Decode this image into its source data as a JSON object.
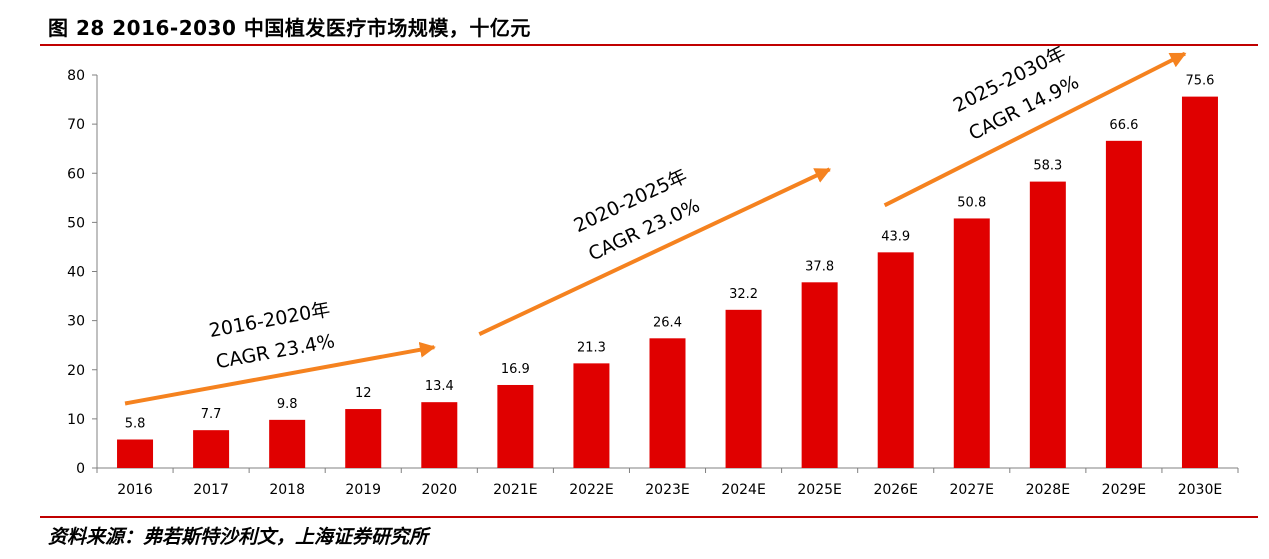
{
  "page": {
    "title": "图 28 2016-2030 中国植发医疗市场规模，十亿元",
    "source": "资料来源：弗若斯特沙利文，上海证券研究所"
  },
  "colors": {
    "bar": "#e00000",
    "arrow": "#f5821f",
    "rule": "#c00000",
    "axis": "#808080"
  },
  "chart_data": {
    "type": "bar",
    "title": "图 28 2016-2030 中国植发医疗市场规模，十亿元",
    "categories": [
      "2016",
      "2017",
      "2018",
      "2019",
      "2020",
      "2021E",
      "2022E",
      "2023E",
      "2024E",
      "2025E",
      "2026E",
      "2027E",
      "2028E",
      "2029E",
      "2030E"
    ],
    "series": [
      {
        "values": [
          5.8,
          7.7,
          9.8,
          12,
          13.4,
          16.9,
          21.3,
          26.4,
          32.2,
          37.8,
          43.9,
          50.8,
          58.3,
          66.6,
          75.6
        ]
      }
    ],
    "data_labels": [
      "5.8",
      "7.7",
      "9.8",
      "12",
      "13.4",
      "16.9",
      "21.3",
      "26.4",
      "32.2",
      "37.8",
      "43.9",
      "50.8",
      "58.3",
      "66.6",
      "75.6"
    ],
    "ylim": [
      0,
      80
    ],
    "yticks": [
      0,
      10,
      20,
      30,
      40,
      50,
      60,
      70,
      80
    ],
    "xlabel": "",
    "ylabel": "",
    "grid": false,
    "annotations": [
      {
        "line1": "2016-2020年",
        "line2": "CAGR 23.4%",
        "from_category": "2016",
        "to_category": "2020"
      },
      {
        "line1": "2020-2025年",
        "line2": "CAGR 23.0%",
        "from_category": "2020",
        "to_category": "2025E"
      },
      {
        "line1": "2025-2030年",
        "line2": "CAGR 14.9%",
        "from_category": "2025E",
        "to_category": "2030E"
      }
    ]
  }
}
